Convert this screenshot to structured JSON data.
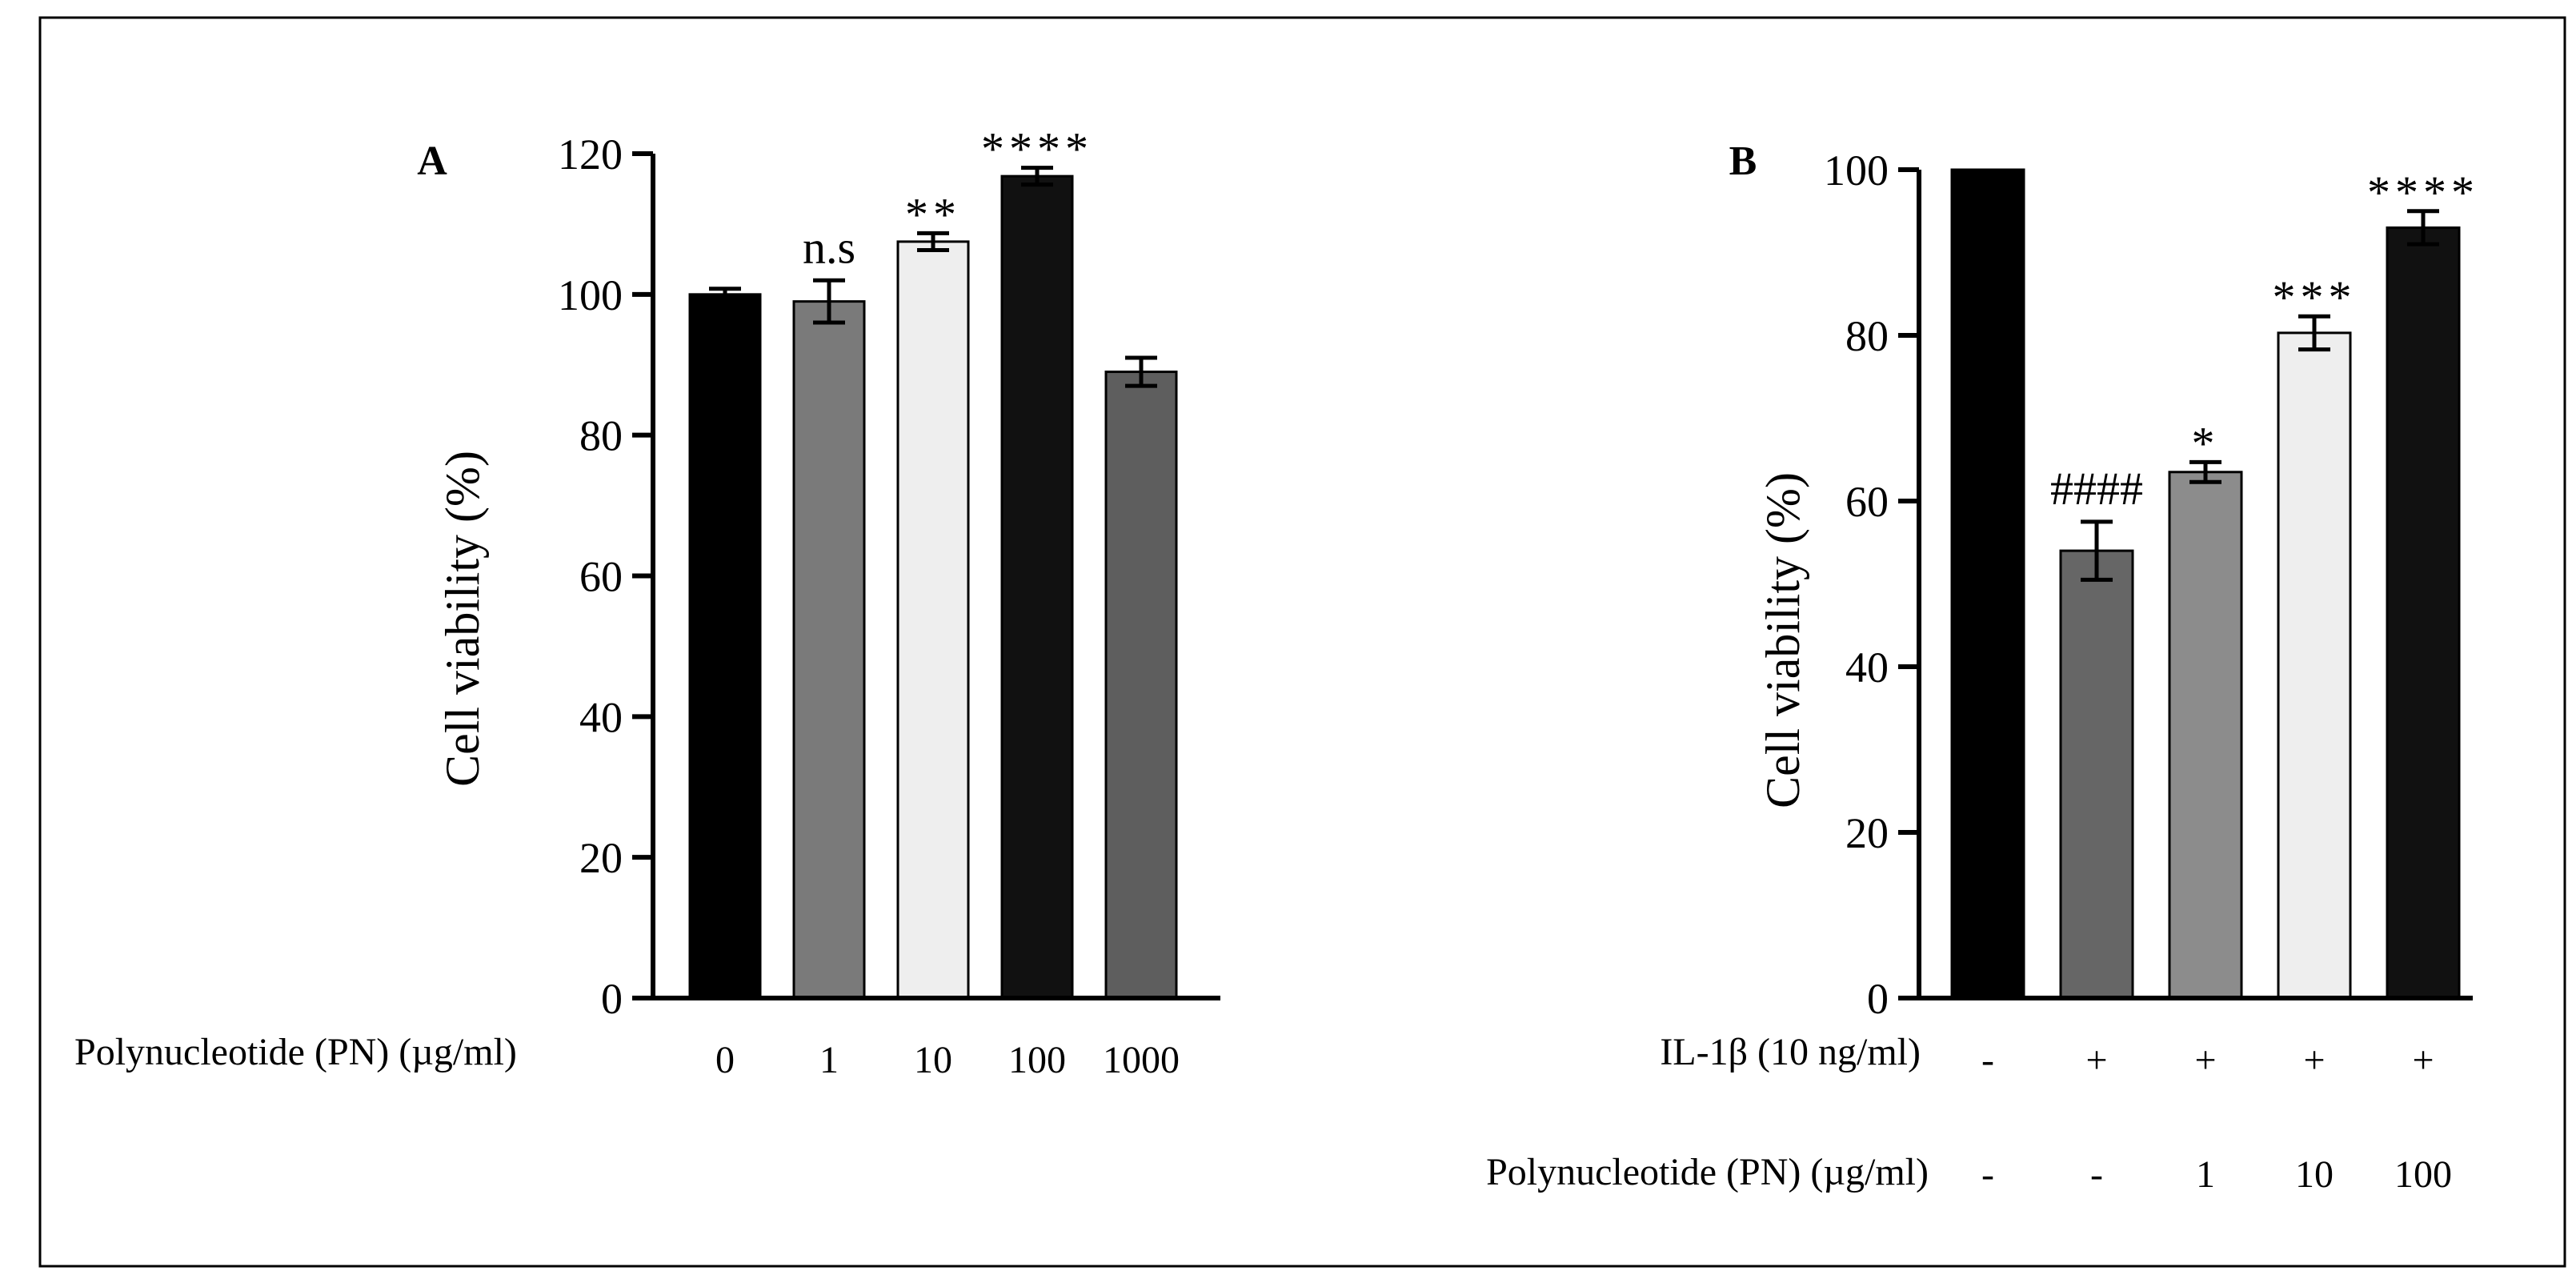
{
  "chart_data": [
    {
      "type": "bar",
      "panel_label": "A",
      "ylabel": "Cell viability (%)",
      "ylim": [
        0,
        120
      ],
      "yticks": [
        "0",
        "20",
        "40",
        "60",
        "80",
        "100",
        "120"
      ],
      "row_label": "Polynucleotide (PN) (µg/ml)",
      "categories": [
        "0",
        "1",
        "10",
        "100",
        "1000"
      ],
      "values": [
        100,
        99,
        107.5,
        116.8,
        89
      ],
      "errors": [
        0.8,
        3,
        1.2,
        1.2,
        2
      ],
      "bar_colors": [
        "#000000",
        "#7a7a7a",
        "#eeeeee",
        "#111111",
        "#5e5e5e"
      ],
      "annotations": [
        "",
        "n.s",
        "**",
        "****",
        ""
      ]
    },
    {
      "type": "bar",
      "panel_label": "B",
      "ylabel": "Cell viability (%)",
      "ylim": [
        0,
        100
      ],
      "yticks": [
        "0",
        "20",
        "40",
        "60",
        "80",
        "100"
      ],
      "rows": [
        {
          "label": "IL-1β (10 ng/ml)",
          "values": [
            "-",
            "+",
            "+",
            "+",
            "+"
          ]
        },
        {
          "label": "Polynucleotide (PN) (µg/ml)",
          "values": [
            "-",
            "-",
            "1",
            "10",
            "100"
          ]
        }
      ],
      "values": [
        100,
        54,
        63.5,
        80.3,
        93
      ],
      "errors": [
        0,
        3.5,
        1.2,
        2,
        2
      ],
      "bar_colors": [
        "#000000",
        "#666666",
        "#8c8c8c",
        "#eeeeee",
        "#111111"
      ],
      "annotations": [
        "",
        "####",
        "*",
        "***",
        "****"
      ]
    }
  ]
}
